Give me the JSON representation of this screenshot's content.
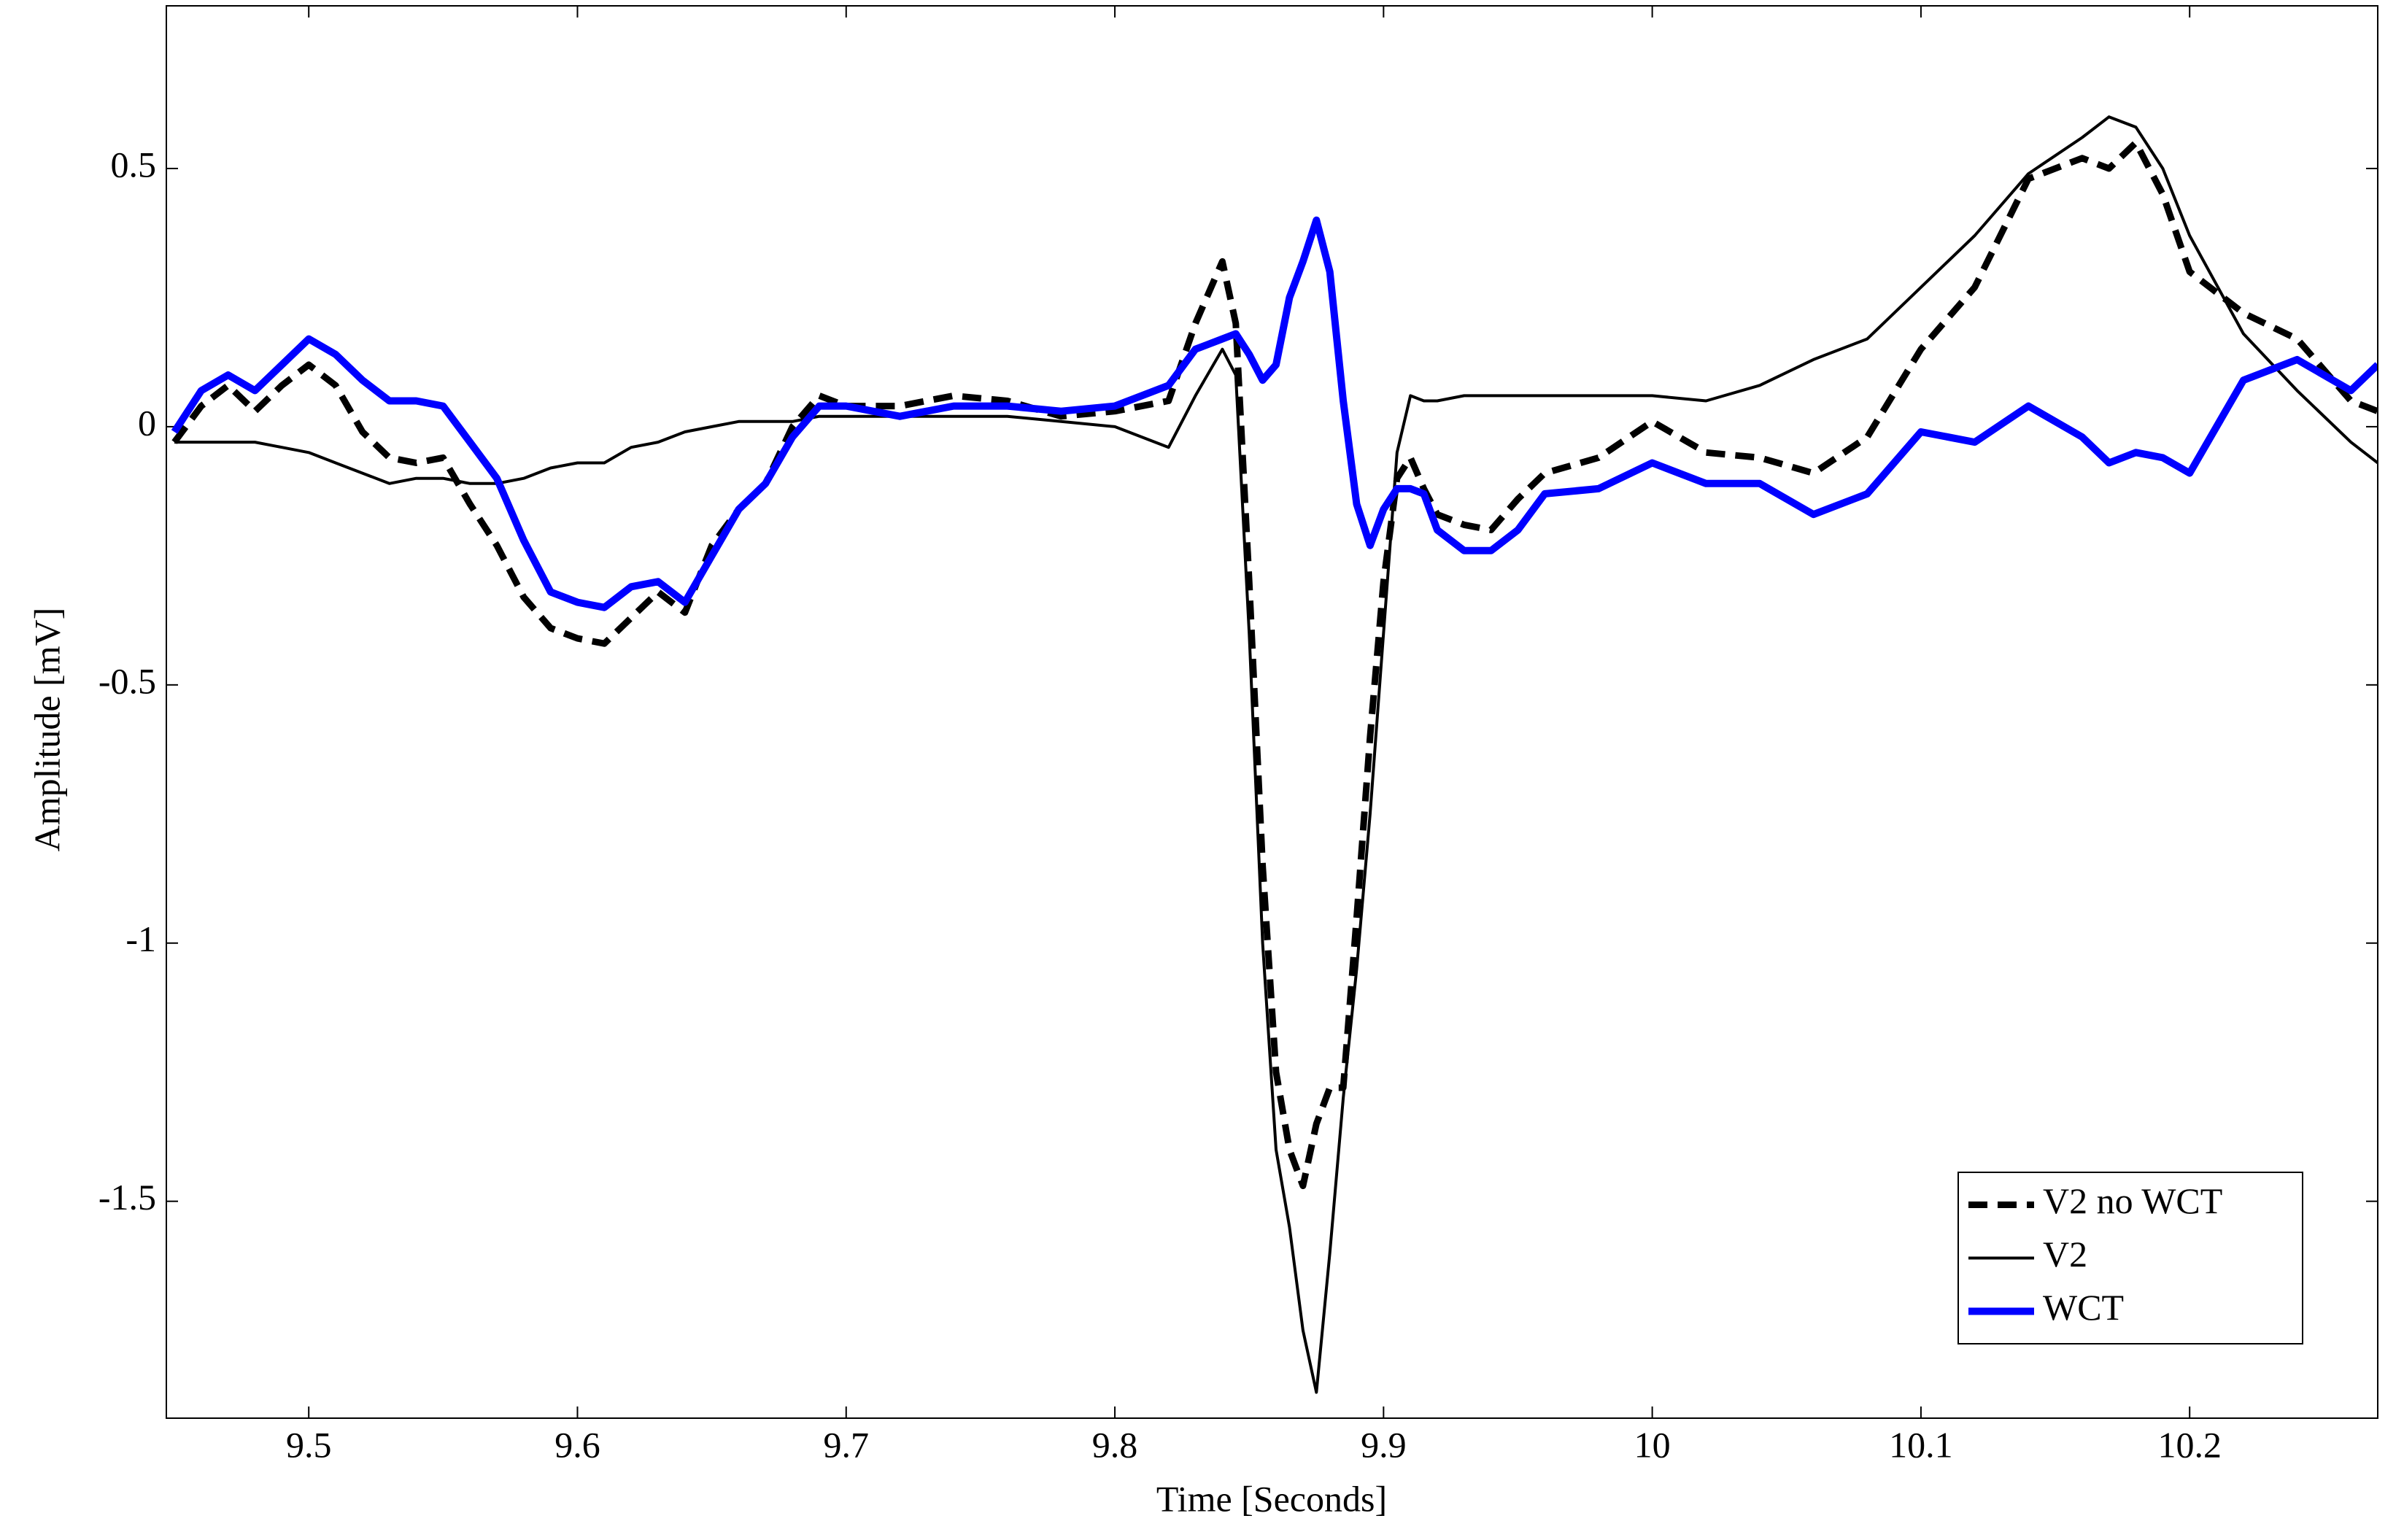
{
  "chart_data": {
    "type": "line",
    "xlabel": "Time [Seconds]",
    "ylabel": "Amplitude [mV]",
    "x": [
      9.45,
      9.46,
      9.47,
      9.48,
      9.49,
      9.5,
      9.51,
      9.52,
      9.53,
      9.54,
      9.55,
      9.56,
      9.57,
      9.58,
      9.59,
      9.6,
      9.61,
      9.62,
      9.63,
      9.64,
      9.65,
      9.66,
      9.67,
      9.68,
      9.69,
      9.7,
      9.72,
      9.74,
      9.76,
      9.78,
      9.8,
      9.82,
      9.83,
      9.84,
      9.845,
      9.85,
      9.855,
      9.86,
      9.865,
      9.87,
      9.875,
      9.88,
      9.885,
      9.89,
      9.895,
      9.9,
      9.905,
      9.91,
      9.915,
      9.92,
      9.93,
      9.94,
      9.95,
      9.96,
      9.98,
      10.0,
      10.02,
      10.04,
      10.06,
      10.08,
      10.1,
      10.12,
      10.14,
      10.16,
      10.17,
      10.18,
      10.19,
      10.2,
      10.22,
      10.24,
      10.26,
      10.27
    ],
    "series": [
      {
        "name": "V2 no WCT",
        "color": "#000000",
        "linestyle": "dashed",
        "values": [
          -0.03,
          0.04,
          0.08,
          0.03,
          0.08,
          0.12,
          0.08,
          -0.01,
          -0.06,
          -0.07,
          -0.06,
          -0.15,
          -0.23,
          -0.33,
          -0.39,
          -0.41,
          -0.42,
          -0.37,
          -0.32,
          -0.36,
          -0.23,
          -0.16,
          -0.11,
          0.0,
          0.06,
          0.04,
          0.04,
          0.06,
          0.05,
          0.02,
          0.03,
          0.05,
          0.2,
          0.32,
          0.2,
          -0.3,
          -0.85,
          -1.25,
          -1.4,
          -1.47,
          -1.35,
          -1.28,
          -1.28,
          -0.95,
          -0.6,
          -0.3,
          -0.1,
          -0.06,
          -0.12,
          -0.17,
          -0.19,
          -0.2,
          -0.14,
          -0.09,
          -0.06,
          0.01,
          -0.05,
          -0.06,
          -0.09,
          -0.02,
          0.15,
          0.27,
          0.48,
          0.52,
          0.5,
          0.55,
          0.45,
          0.3,
          0.22,
          0.17,
          0.05,
          0.03
        ]
      },
      {
        "name": "V2",
        "color": "#000000",
        "linestyle": "solid",
        "values": [
          -0.03,
          -0.03,
          -0.03,
          -0.03,
          -0.04,
          -0.05,
          -0.07,
          -0.09,
          -0.11,
          -0.1,
          -0.1,
          -0.11,
          -0.11,
          -0.1,
          -0.08,
          -0.07,
          -0.07,
          -0.04,
          -0.03,
          -0.01,
          0.0,
          0.01,
          0.01,
          0.01,
          0.02,
          0.02,
          0.02,
          0.02,
          0.02,
          0.01,
          0.0,
          -0.04,
          0.06,
          0.15,
          0.1,
          -0.4,
          -1.0,
          -1.4,
          -1.55,
          -1.75,
          -1.87,
          -1.6,
          -1.3,
          -1.05,
          -0.75,
          -0.4,
          -0.05,
          0.06,
          0.05,
          0.05,
          0.06,
          0.06,
          0.06,
          0.06,
          0.06,
          0.06,
          0.05,
          0.08,
          0.13,
          0.17,
          0.27,
          0.37,
          0.49,
          0.56,
          0.6,
          0.58,
          0.5,
          0.37,
          0.18,
          0.07,
          -0.03,
          -0.07
        ]
      },
      {
        "name": "WCT",
        "color": "#0000ff",
        "linestyle": "solid",
        "values": [
          -0.01,
          0.07,
          0.1,
          0.07,
          0.12,
          0.17,
          0.14,
          0.09,
          0.05,
          0.05,
          0.04,
          -0.03,
          -0.1,
          -0.22,
          -0.32,
          -0.34,
          -0.35,
          -0.31,
          -0.3,
          -0.34,
          -0.25,
          -0.16,
          -0.11,
          -0.02,
          0.04,
          0.04,
          0.02,
          0.04,
          0.04,
          0.03,
          0.04,
          0.08,
          0.15,
          0.17,
          0.18,
          0.14,
          0.09,
          0.12,
          0.25,
          0.32,
          0.4,
          0.3,
          0.05,
          -0.15,
          -0.23,
          -0.16,
          -0.12,
          -0.12,
          -0.13,
          -0.2,
          -0.24,
          -0.24,
          -0.2,
          -0.13,
          -0.12,
          -0.07,
          -0.11,
          -0.11,
          -0.17,
          -0.13,
          -0.01,
          -0.03,
          0.04,
          -0.02,
          -0.07,
          -0.05,
          -0.06,
          -0.09,
          0.09,
          0.13,
          0.07,
          0.12
        ]
      }
    ],
    "xlim": [
      9.447,
      10.27
    ],
    "xticks": [
      9.5,
      9.6,
      9.7,
      9.8,
      9.9,
      10,
      10.1,
      10.2
    ],
    "ylim": [
      -1.92,
      0.815
    ],
    "yticks": [
      -1.5,
      -1,
      -0.5,
      0,
      0.5
    ],
    "grid": false,
    "legend": "lower right"
  }
}
